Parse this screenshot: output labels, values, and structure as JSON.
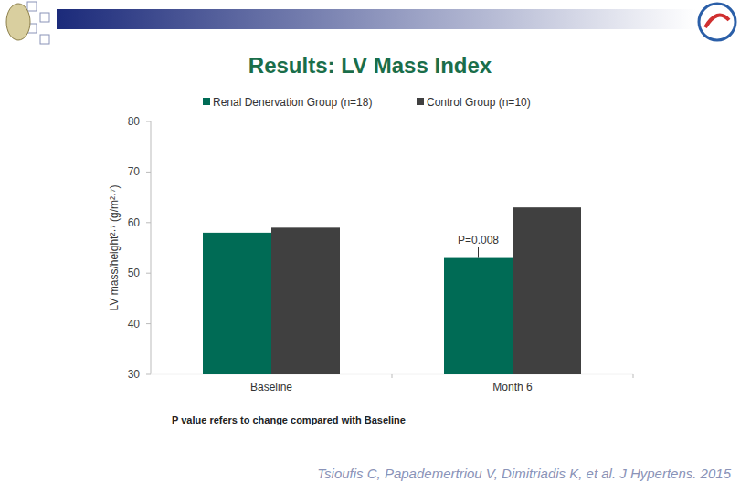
{
  "chart_data": {
    "type": "bar",
    "title": "Results: LV Mass Index",
    "ylabel": "LV mass/height²·⁷ (g/m²·⁷)",
    "categories": [
      "Baseline",
      "Month 6"
    ],
    "series": [
      {
        "name": "Renal Denervation Group (n=18)",
        "color": "#006b55",
        "values": [
          58,
          53
        ]
      },
      {
        "name": "Control Group (n=10)",
        "color": "#404040",
        "values": [
          59,
          63
        ]
      }
    ],
    "ylim": [
      30,
      80
    ],
    "yticks": [
      30,
      40,
      50,
      60,
      70,
      80
    ],
    "grid": false,
    "legend": "top",
    "annotation": "P=0.008",
    "note": "P value refers to change compared with Baseline",
    "source": "Tsioufis C, Papademertriou V, Dimitriadis K, et al. J Hypertens. 2015"
  }
}
